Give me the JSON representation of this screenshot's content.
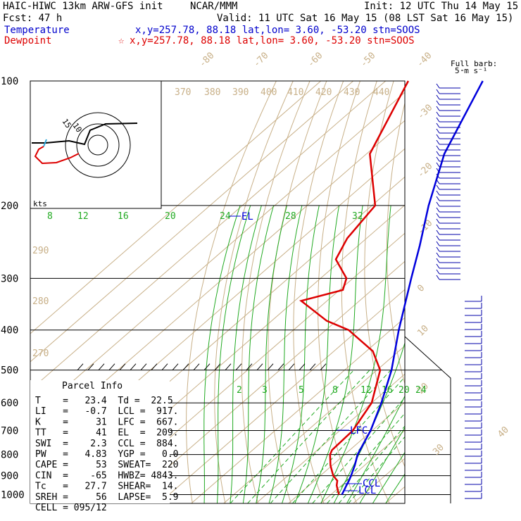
{
  "header": {
    "model": "HAIC-HIWC 13km ARW-GFS init",
    "org": "NCAR/MMM",
    "init": "Init: 12 UTC Thu 14 May 15",
    "fcst": "Fcst:    47 h",
    "valid": "Valid: 11 UTC Sat 16 May 15 (08 LST Sat 16 May 15)",
    "temp_label": "Temperature",
    "temp_info": "x,y=257.78, 88.18    lat,lon=  3.60, -53.20  stn=SOOS",
    "dew_label": "Dewpoint",
    "dew_star": "☆",
    "dew_info": "x,y=257.78, 88.18    lat,lon=  3.60, -53.20  stn=SOOS",
    "barb_title": "Full barb:",
    "barb_unit": "5 m s⁻¹"
  },
  "colors": {
    "temperature": "#0000dd",
    "dewpoint": "#dd0000",
    "isotherm": "#c8b088",
    "mixing_ratio": "#22aa22",
    "hodograph": "#000000"
  },
  "hodograph": {
    "units": "kts",
    "ring_labels": [
      "15",
      "10"
    ]
  },
  "parcel": {
    "title": "Parcel Info",
    "rows": [
      "T    =   23.4  Td =  22.5",
      "LI   =   -0.7  LCL =  917.",
      "K    =     31  LFC =  667.",
      "TT   =     41  EL  =  209.",
      "SWI  =    2.3  CCL =  884.",
      "PW   =   4.83  YGP =   0.0",
      "CAPE =     53  SWEAT=  220",
      "CIN  =    -65  HWBZ= 4843.",
      "Tc   =   27.7  SHEAR=  14.",
      "SREH =     56  LAPSE=  5.9",
      "CELL = 095/12"
    ]
  },
  "levels": {
    "EL": "EL",
    "LFC": "LFC",
    "CCL": "CCL",
    "LCL": "LCL"
  },
  "chart_data": {
    "type": "line",
    "title": "",
    "pressure_levels": [
      1000,
      900,
      800,
      700,
      600,
      500,
      400,
      300,
      200,
      100
    ],
    "pressure_labels": [
      "1000",
      "900",
      "800",
      "700",
      "600",
      "500",
      "400",
      "300",
      "200",
      "100"
    ],
    "isotherm_labels": [
      "-80",
      "-70",
      "-60",
      "-50",
      "-40",
      "-30",
      "-20",
      "-10",
      "0",
      "10",
      "20",
      "30",
      "40"
    ],
    "dry_adiabat_labels": [
      "370",
      "380",
      "390",
      "400",
      "410",
      "420",
      "430",
      "440",
      "290",
      "280",
      "270"
    ],
    "mixing_ratio_labels_upper": [
      "8",
      "12",
      "16",
      "20",
      "24",
      "28",
      "32"
    ],
    "mixing_ratio_labels_lower": [
      "2",
      "3",
      "5",
      "8",
      "12",
      "16",
      "20",
      "24"
    ],
    "series": [
      {
        "name": "Temperature",
        "pressure": [
          1000,
          975,
          950,
          925,
          900,
          850,
          800,
          700,
          600,
          500,
          400,
          300,
          250,
          200,
          150,
          100
        ],
        "values": [
          23.4,
          22.5,
          21.5,
          20.6,
          19.5,
          17.0,
          14.0,
          9.5,
          3.0,
          -5.5,
          -17.5,
          -32.0,
          -41.0,
          -52.5,
          -66.0,
          -80.0
        ]
      },
      {
        "name": "Dewpoint",
        "pressure": [
          1000,
          975,
          950,
          925,
          900,
          850,
          800,
          780,
          700,
          600,
          500,
          450,
          400,
          380,
          340,
          320,
          300,
          270,
          240,
          200,
          150,
          100
        ],
        "values": [
          22.5,
          20.5,
          18.5,
          17.0,
          14.0,
          9.5,
          5.5,
          4.5,
          4.0,
          0.0,
          -9.0,
          -18.0,
          -33.0,
          -43.0,
          -58.0,
          -49.0,
          -52.0,
          -62.0,
          -66.0,
          -69.0,
          -89.0,
          -103.0
        ]
      }
    ]
  }
}
